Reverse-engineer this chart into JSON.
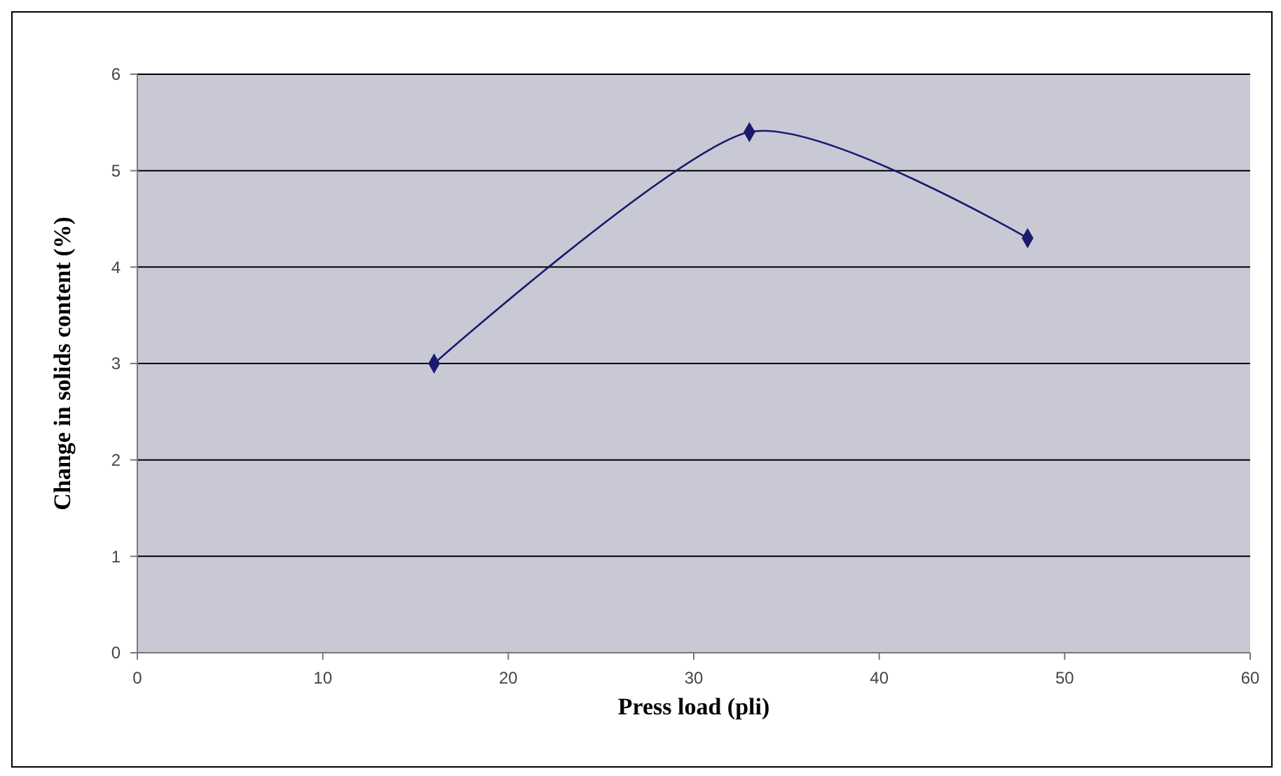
{
  "chart_data": {
    "type": "line",
    "xlabel": "Press load (pli)",
    "ylabel": "Change in solids content (%)",
    "x": [
      16,
      33,
      48
    ],
    "series": [
      {
        "color": "#1a1a6e",
        "values": [
          3,
          5.4,
          4.3
        ]
      }
    ],
    "xlim": [
      0,
      60
    ],
    "xticks": [
      0,
      10,
      20,
      30,
      40,
      50,
      60
    ],
    "ylim": [
      0,
      6
    ],
    "yticks": [
      0,
      1,
      2,
      3,
      4,
      5,
      6
    ],
    "grid": "y",
    "marker": "diamond",
    "line_style": "solid"
  }
}
